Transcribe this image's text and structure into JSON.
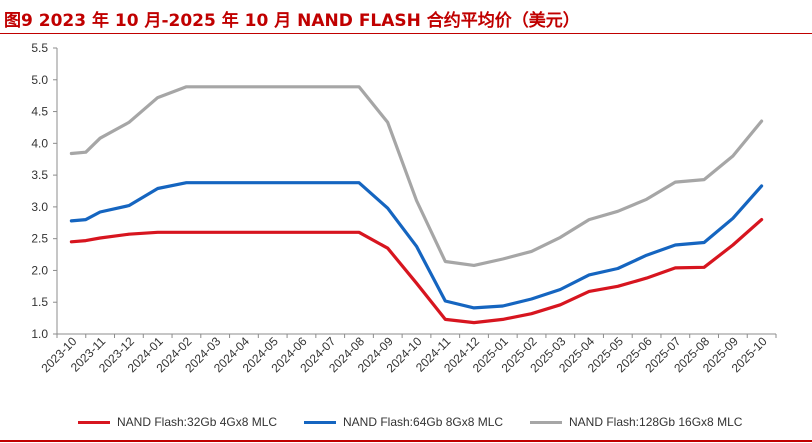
{
  "figure": {
    "label": "图9  2023 年 10 月-2025 年 10 月 NAND FLASH 合约平均价（美元）",
    "accent_color": "#c00000"
  },
  "chart_data": {
    "type": "line",
    "title": "图9  2023 年 10 月-2025 年 10 月 NAND FLASH 合约平均价（美元）",
    "xlabel": "",
    "ylabel": "",
    "ylim": [
      1.0,
      5.5
    ],
    "yticks": [
      1.0,
      1.5,
      2.0,
      2.5,
      3.0,
      3.5,
      4.0,
      4.5,
      5.0,
      5.5
    ],
    "ytick_labels": [
      "1.0",
      "1.5",
      "2.0",
      "2.5",
      "3.0",
      "3.5",
      "4.0",
      "4.5",
      "5.0",
      "5.5"
    ],
    "grid": false,
    "legend_position": "bottom",
    "x": [
      "2023-10",
      "2023-11",
      "2023-12",
      "2024-01",
      "2024-02",
      "2024-03",
      "2024-04",
      "2024-05",
      "2024-06",
      "2024-07",
      "2024-08",
      "2024-09",
      "2024-10",
      "2024-11",
      "2024-12",
      "2025-01",
      "2025-02",
      "2025-03",
      "2025-04",
      "2025-05",
      "2025-06",
      "2025-07",
      "2025-08",
      "2025-09",
      "2025-10"
    ],
    "series": [
      {
        "name": "NAND Flash:32Gb 4Gx8 MLC",
        "color": "#d7151f",
        "points": [
          [
            0,
            2.45
          ],
          [
            0.5,
            2.47
          ],
          [
            1,
            2.51
          ],
          [
            2,
            2.57
          ],
          [
            3,
            2.6
          ],
          [
            4,
            2.6
          ],
          [
            5,
            2.6
          ],
          [
            6,
            2.6
          ],
          [
            7,
            2.6
          ],
          [
            8,
            2.6
          ],
          [
            9,
            2.6
          ],
          [
            10,
            2.6
          ],
          [
            11,
            2.35
          ],
          [
            12,
            1.8
          ],
          [
            13,
            1.23
          ],
          [
            14,
            1.18
          ],
          [
            15,
            1.23
          ],
          [
            16,
            1.32
          ],
          [
            17,
            1.46
          ],
          [
            18,
            1.67
          ],
          [
            19,
            1.75
          ],
          [
            20,
            1.88
          ],
          [
            21,
            2.04
          ],
          [
            22,
            2.05
          ],
          [
            23,
            2.4
          ],
          [
            24,
            2.8
          ]
        ]
      },
      {
        "name": "NAND Flash:64Gb 8Gx8 MLC",
        "color": "#1565c0",
        "points": [
          [
            0,
            2.78
          ],
          [
            0.5,
            2.8
          ],
          [
            1,
            2.92
          ],
          [
            2,
            3.02
          ],
          [
            3,
            3.29
          ],
          [
            4,
            3.38
          ],
          [
            5,
            3.38
          ],
          [
            6,
            3.38
          ],
          [
            7,
            3.38
          ],
          [
            8,
            3.38
          ],
          [
            9,
            3.38
          ],
          [
            10,
            3.38
          ],
          [
            11,
            2.98
          ],
          [
            12,
            2.38
          ],
          [
            13,
            1.52
          ],
          [
            14,
            1.41
          ],
          [
            15,
            1.44
          ],
          [
            16,
            1.55
          ],
          [
            17,
            1.7
          ],
          [
            18,
            1.93
          ],
          [
            19,
            2.03
          ],
          [
            20,
            2.24
          ],
          [
            21,
            2.4
          ],
          [
            22,
            2.44
          ],
          [
            23,
            2.82
          ],
          [
            24,
            3.33
          ]
        ]
      },
      {
        "name": "NAND Flash:128Gb 16Gx8 MLC",
        "color": "#a6a6a6",
        "points": [
          [
            0,
            3.84
          ],
          [
            0.5,
            3.86
          ],
          [
            1,
            4.08
          ],
          [
            2,
            4.33
          ],
          [
            3,
            4.72
          ],
          [
            4,
            4.89
          ],
          [
            5,
            4.89
          ],
          [
            6,
            4.89
          ],
          [
            7,
            4.89
          ],
          [
            8,
            4.89
          ],
          [
            9,
            4.89
          ],
          [
            10,
            4.89
          ],
          [
            11,
            4.33
          ],
          [
            12,
            3.1
          ],
          [
            13,
            2.14
          ],
          [
            14,
            2.08
          ],
          [
            15,
            2.18
          ],
          [
            16,
            2.3
          ],
          [
            17,
            2.52
          ],
          [
            18,
            2.8
          ],
          [
            19,
            2.93
          ],
          [
            20,
            3.12
          ],
          [
            21,
            3.39
          ],
          [
            22,
            3.43
          ],
          [
            23,
            3.8
          ],
          [
            24,
            4.35
          ]
        ]
      }
    ]
  }
}
